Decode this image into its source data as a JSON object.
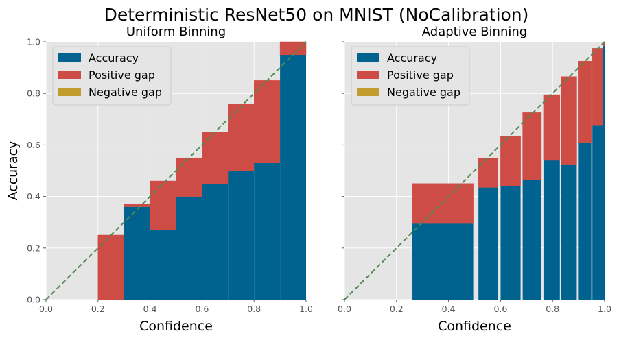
{
  "title": "Deterministic ResNet50 on MNIST (NoCalibration)",
  "colors": {
    "accuracy": "#00628f",
    "positive_gap": "#cd4c46",
    "negative_gap": "#c29d2e",
    "diagonal": "#4e8a4e",
    "background": "#e5e5e5",
    "grid": "#ffffff"
  },
  "legend": {
    "placement": "upper-left",
    "entries": [
      "Accuracy",
      "Positive gap",
      "Negative gap"
    ]
  },
  "chart_data": [
    {
      "type": "bar",
      "title": "Uniform Binning",
      "xlabel": "Confidence",
      "ylabel": "Accuracy",
      "xlim": [
        0,
        1
      ],
      "ylim": [
        0,
        1
      ],
      "xticks": [
        "0.0",
        "0.2",
        "0.4",
        "0.6",
        "0.8",
        "1.0"
      ],
      "yticks": [
        "0.0",
        "0.2",
        "0.4",
        "0.6",
        "0.8",
        "1.0"
      ],
      "grid": true,
      "diagonal": true,
      "bins": [
        {
          "x0": 0.2,
          "x1": 0.3,
          "accuracy": 0.0,
          "expected": 0.25
        },
        {
          "x0": 0.3,
          "x1": 0.4,
          "accuracy": 0.36,
          "expected": 0.37
        },
        {
          "x0": 0.4,
          "x1": 0.5,
          "accuracy": 0.27,
          "expected": 0.46
        },
        {
          "x0": 0.5,
          "x1": 0.6,
          "accuracy": 0.4,
          "expected": 0.55
        },
        {
          "x0": 0.6,
          "x1": 0.7,
          "accuracy": 0.45,
          "expected": 0.65
        },
        {
          "x0": 0.7,
          "x1": 0.8,
          "accuracy": 0.5,
          "expected": 0.76
        },
        {
          "x0": 0.8,
          "x1": 0.9,
          "accuracy": 0.53,
          "expected": 0.85
        },
        {
          "x0": 0.9,
          "x1": 1.0,
          "accuracy": 0.95,
          "expected": 1.0
        }
      ]
    },
    {
      "type": "bar",
      "title": "Adaptive Binning",
      "xlabel": "Confidence",
      "ylabel": "",
      "xlim": [
        0,
        1
      ],
      "ylim": [
        0,
        1
      ],
      "xticks": [
        "0.0",
        "0.2",
        "0.4",
        "0.6",
        "0.8",
        "1.0"
      ],
      "yticks": [],
      "grid": true,
      "diagonal": true,
      "bins": [
        {
          "x0": 0.26,
          "x1": 0.495,
          "accuracy": 0.295,
          "expected": 0.45
        },
        {
          "x0": 0.515,
          "x1": 0.59,
          "accuracy": 0.435,
          "expected": 0.55
        },
        {
          "x0": 0.6,
          "x1": 0.677,
          "accuracy": 0.44,
          "expected": 0.635
        },
        {
          "x0": 0.685,
          "x1": 0.757,
          "accuracy": 0.465,
          "expected": 0.725
        },
        {
          "x0": 0.765,
          "x1": 0.828,
          "accuracy": 0.54,
          "expected": 0.795
        },
        {
          "x0": 0.833,
          "x1": 0.893,
          "accuracy": 0.525,
          "expected": 0.865
        },
        {
          "x0": 0.898,
          "x1": 0.949,
          "accuracy": 0.61,
          "expected": 0.925
        },
        {
          "x0": 0.953,
          "x1": 0.993,
          "accuracy": 0.675,
          "expected": 0.975
        },
        {
          "x0": 0.993,
          "x1": 1.0,
          "accuracy": 0.985,
          "expected": 1.0
        }
      ]
    }
  ]
}
